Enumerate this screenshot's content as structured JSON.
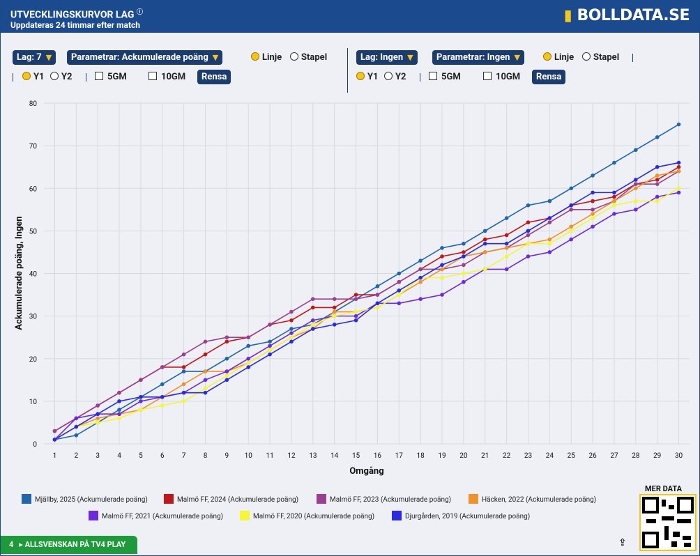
{
  "header": {
    "title": "UTVECKLINGSKURVOR LAG",
    "subtitle": "Uppdateras 24 timmar efter match",
    "logo": "BOLLDATA.SE"
  },
  "controls": {
    "left": {
      "team": "Lag: 7",
      "parameter": "Parametrar: Ackumulerade poäng",
      "line": "Linje",
      "bar": "Stapel",
      "y1": "Y1",
      "y2": "Y2",
      "gm5": "5GM",
      "gm10": "10GM",
      "clear": "Rensa"
    },
    "right": {
      "team": "Lag: Ingen",
      "parameter": "Parametrar: Ingen",
      "line": "Linje",
      "bar": "Stapel",
      "y1": "Y1",
      "y2": "Y2",
      "gm5": "5GM",
      "gm10": "10GM",
      "clear": "Rensa"
    }
  },
  "chart_data": {
    "type": "line",
    "x_label": "Omgång",
    "y_label": "Ackumulerade poäng, Ingen",
    "x": [
      1,
      2,
      3,
      4,
      5,
      6,
      7,
      8,
      9,
      10,
      11,
      12,
      13,
      14,
      15,
      16,
      17,
      18,
      19,
      20,
      21,
      22,
      23,
      24,
      25,
      26,
      27,
      28,
      29,
      30
    ],
    "xlim": [
      0.5,
      30.5
    ],
    "xticks": [
      1,
      2,
      3,
      4,
      5,
      6,
      7,
      8,
      9,
      10,
      11,
      12,
      13,
      14,
      15,
      16,
      17,
      18,
      19,
      20,
      21,
      22,
      23,
      24,
      25,
      26,
      27,
      28,
      29,
      30
    ],
    "ylim": [
      0,
      80
    ],
    "yticks": [
      0,
      10,
      20,
      30,
      40,
      50,
      60,
      70,
      80
    ],
    "grid": true,
    "series": [
      {
        "name": "Mjällby, 2025 (Ackumulerade poäng)",
        "color": "#2166ac",
        "values": [
          1,
          2,
          5,
          8,
          11,
          14,
          17,
          17,
          20,
          23,
          24,
          27,
          28,
          31,
          34,
          37,
          40,
          43,
          46,
          47,
          50,
          53,
          56,
          57,
          60,
          63,
          66,
          69,
          72,
          75
        ]
      },
      {
        "name": "Malmö FF, 2024 (Ackumulerade poäng)",
        "color": "#c0171c",
        "values": [
          3,
          6,
          9,
          12,
          15,
          18,
          18,
          21,
          24,
          25,
          28,
          29,
          32,
          32,
          35,
          35,
          38,
          41,
          44,
          45,
          48,
          49,
          52,
          53,
          56,
          57,
          58,
          61,
          62,
          65
        ]
      },
      {
        "name": "Malmö FF, 2023 (Ackumulerade poäng)",
        "color": "#9b3f8f",
        "values": [
          3,
          6,
          9,
          12,
          15,
          18,
          21,
          24,
          25,
          25,
          28,
          31,
          34,
          34,
          34,
          35,
          38,
          41,
          41,
          42,
          45,
          46,
          49,
          52,
          55,
          55,
          57,
          61,
          61,
          64
        ]
      },
      {
        "name": "Häcken, 2022 (Ackumulerade poäng)",
        "color": "#f0922b",
        "values": [
          1,
          4,
          6,
          7,
          8,
          11,
          14,
          17,
          17,
          19,
          22,
          25,
          27,
          31,
          31,
          32,
          35,
          38,
          41,
          44,
          45,
          46,
          47,
          48,
          51,
          54,
          57,
          60,
          63,
          64
        ]
      },
      {
        "name": "Malmö FF, 2021 (Ackumulerade poäng)",
        "color": "#6a2be0",
        "values": [
          1,
          6,
          7,
          7,
          10,
          11,
          12,
          15,
          17,
          20,
          23,
          26,
          29,
          30,
          30,
          33,
          33,
          34,
          35,
          38,
          41,
          41,
          44,
          45,
          48,
          51,
          54,
          55,
          58,
          59
        ]
      },
      {
        "name": "Malmö FF, 2020 (Ackumulerade poäng)",
        "color": "#f5f53a",
        "values": [
          1,
          4,
          5,
          6,
          8,
          9,
          10,
          13,
          16,
          19,
          22,
          25,
          28,
          30,
          31,
          32,
          35,
          39,
          39,
          40,
          41,
          44,
          47,
          47,
          50,
          53,
          56,
          57,
          57,
          60
        ]
      },
      {
        "name": "Djurgården, 2019 (Ackumulerade poäng)",
        "color": "#2a2ae0",
        "values": [
          1,
          4,
          7,
          10,
          11,
          11,
          12,
          12,
          15,
          18,
          21,
          24,
          27,
          28,
          29,
          33,
          36,
          39,
          42,
          44,
          47,
          47,
          50,
          53,
          56,
          59,
          59,
          62,
          65,
          66
        ]
      }
    ]
  },
  "footer": {
    "tv_badge": "4",
    "tv_text": "ALLSVENSKAN PÅ TV4 PLAY",
    "more_data": "MER DATA"
  }
}
